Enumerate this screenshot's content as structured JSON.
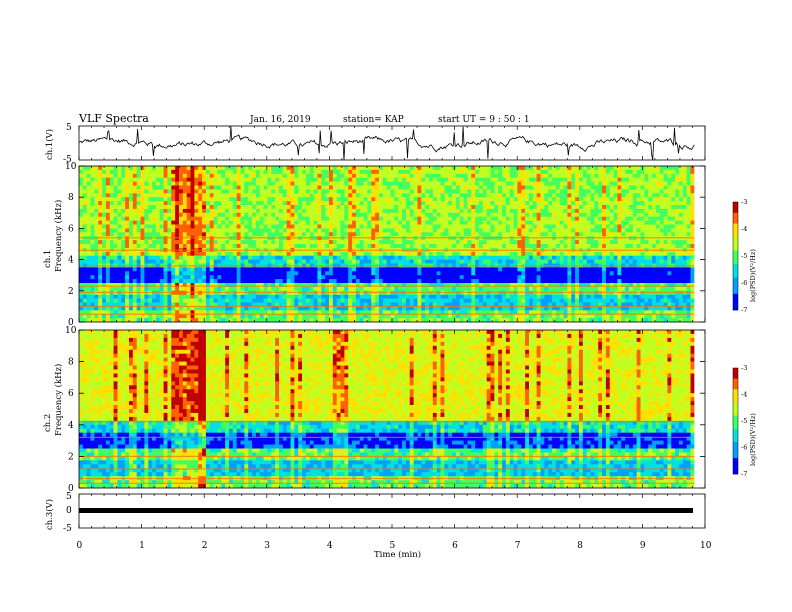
{
  "header": {
    "title": "VLF Spectra",
    "date": "Jan. 16, 2019",
    "station": "station= KAP",
    "start": "start  UT =   9 : 50 : 1"
  },
  "chart_data": [
    {
      "id": "ch1-waveform",
      "type": "line",
      "ylabel": "ch.1(V)",
      "ylim": [
        -5,
        5
      ],
      "ytick_labels": [
        "5",
        "-5"
      ],
      "xlim": [
        0,
        10
      ],
      "trace_color": "#000000",
      "description_values": "noisy waveform centred near 0 V, amplitude ~±1.5 V with occasional spikes to ±5 V"
    },
    {
      "id": "ch1-spectrogram",
      "type": "heatmap",
      "ylabel": "ch.1",
      "ylabel2": "Frequency (kHz)",
      "ylim": [
        0,
        10
      ],
      "ytick_labels": [
        "0",
        "2",
        "4",
        "6",
        "8",
        "10"
      ],
      "xlim": [
        0,
        10
      ],
      "colorbar": {
        "label": "log(PSD)(V²/Hz)",
        "range": [
          -7,
          -3
        ],
        "tick_labels": [
          "-3",
          "-4",
          "-5",
          "-6",
          "-7"
        ]
      }
    },
    {
      "id": "ch2-spectrogram",
      "type": "heatmap",
      "ylabel": "ch.2",
      "ylabel2": "Frequency (kHz)",
      "ylim": [
        0,
        10
      ],
      "ytick_labels": [
        "0",
        "2",
        "4",
        "6",
        "8",
        "10"
      ],
      "xlim": [
        0,
        10
      ],
      "colorbar": {
        "label": "log(PSD)(V²/Hz)",
        "range": [
          -7,
          -3
        ],
        "tick_labels": [
          "-3",
          "-4",
          "-5",
          "-6",
          "-7"
        ]
      }
    },
    {
      "id": "ch3-waveform",
      "type": "line",
      "ylabel": "ch.3(V)",
      "ylim": [
        -5,
        5
      ],
      "ytick_labels": [
        "5",
        "0",
        "-5"
      ],
      "xlim": [
        0,
        10
      ],
      "trace_color": "#000000",
      "constant_value": 0
    }
  ],
  "xaxis": {
    "label": "Time  (min)",
    "tick_labels": [
      "0",
      "1",
      "2",
      "3",
      "4",
      "5",
      "6",
      "7",
      "8",
      "9",
      "10"
    ],
    "data_end": 9.83
  }
}
